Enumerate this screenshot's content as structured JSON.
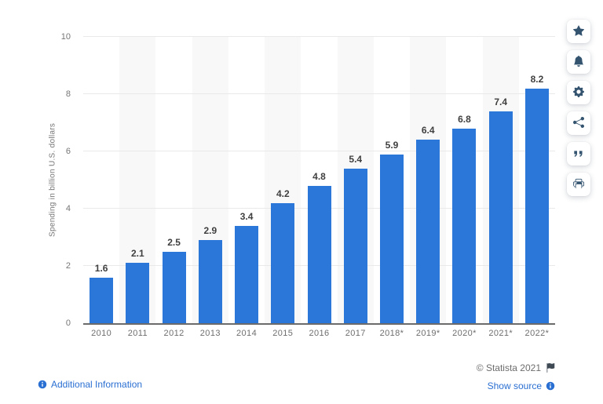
{
  "chart_data": {
    "type": "bar",
    "title": "",
    "categories": [
      "2010",
      "2011",
      "2012",
      "2013",
      "2014",
      "2015",
      "2016",
      "2017",
      "2018*",
      "2019*",
      "2020*",
      "2021*",
      "2022*"
    ],
    "values": [
      1.6,
      2.1,
      2.5,
      2.9,
      3.4,
      4.2,
      4.8,
      5.4,
      5.9,
      6.4,
      6.8,
      7.4,
      8.2
    ],
    "xlabel": "",
    "ylabel": "Spending in billion U.S. dollars",
    "ylim": [
      0,
      10
    ],
    "yticks": [
      0,
      2,
      4,
      6,
      8,
      10
    ],
    "grid": true,
    "legend": false,
    "bar_color": "#2b77d9",
    "alt_band_color": "#f8f8f8",
    "value_label_color": "#3f3f3f",
    "axis_text_color": "#767676"
  },
  "sidebar": {
    "buttons": [
      {
        "name": "favorite-button",
        "icon": "star-icon"
      },
      {
        "name": "notification-button",
        "icon": "bell-icon"
      },
      {
        "name": "settings-button",
        "icon": "gear-icon"
      },
      {
        "name": "share-button",
        "icon": "share-icon"
      },
      {
        "name": "cite-button",
        "icon": "quote-icon"
      },
      {
        "name": "print-button",
        "icon": "printer-icon"
      }
    ]
  },
  "footer": {
    "additional_info_label": "Additional Information",
    "copyright_label": "© Statista 2021",
    "show_source_label": "Show source",
    "link_color": "#2a6fd2"
  }
}
